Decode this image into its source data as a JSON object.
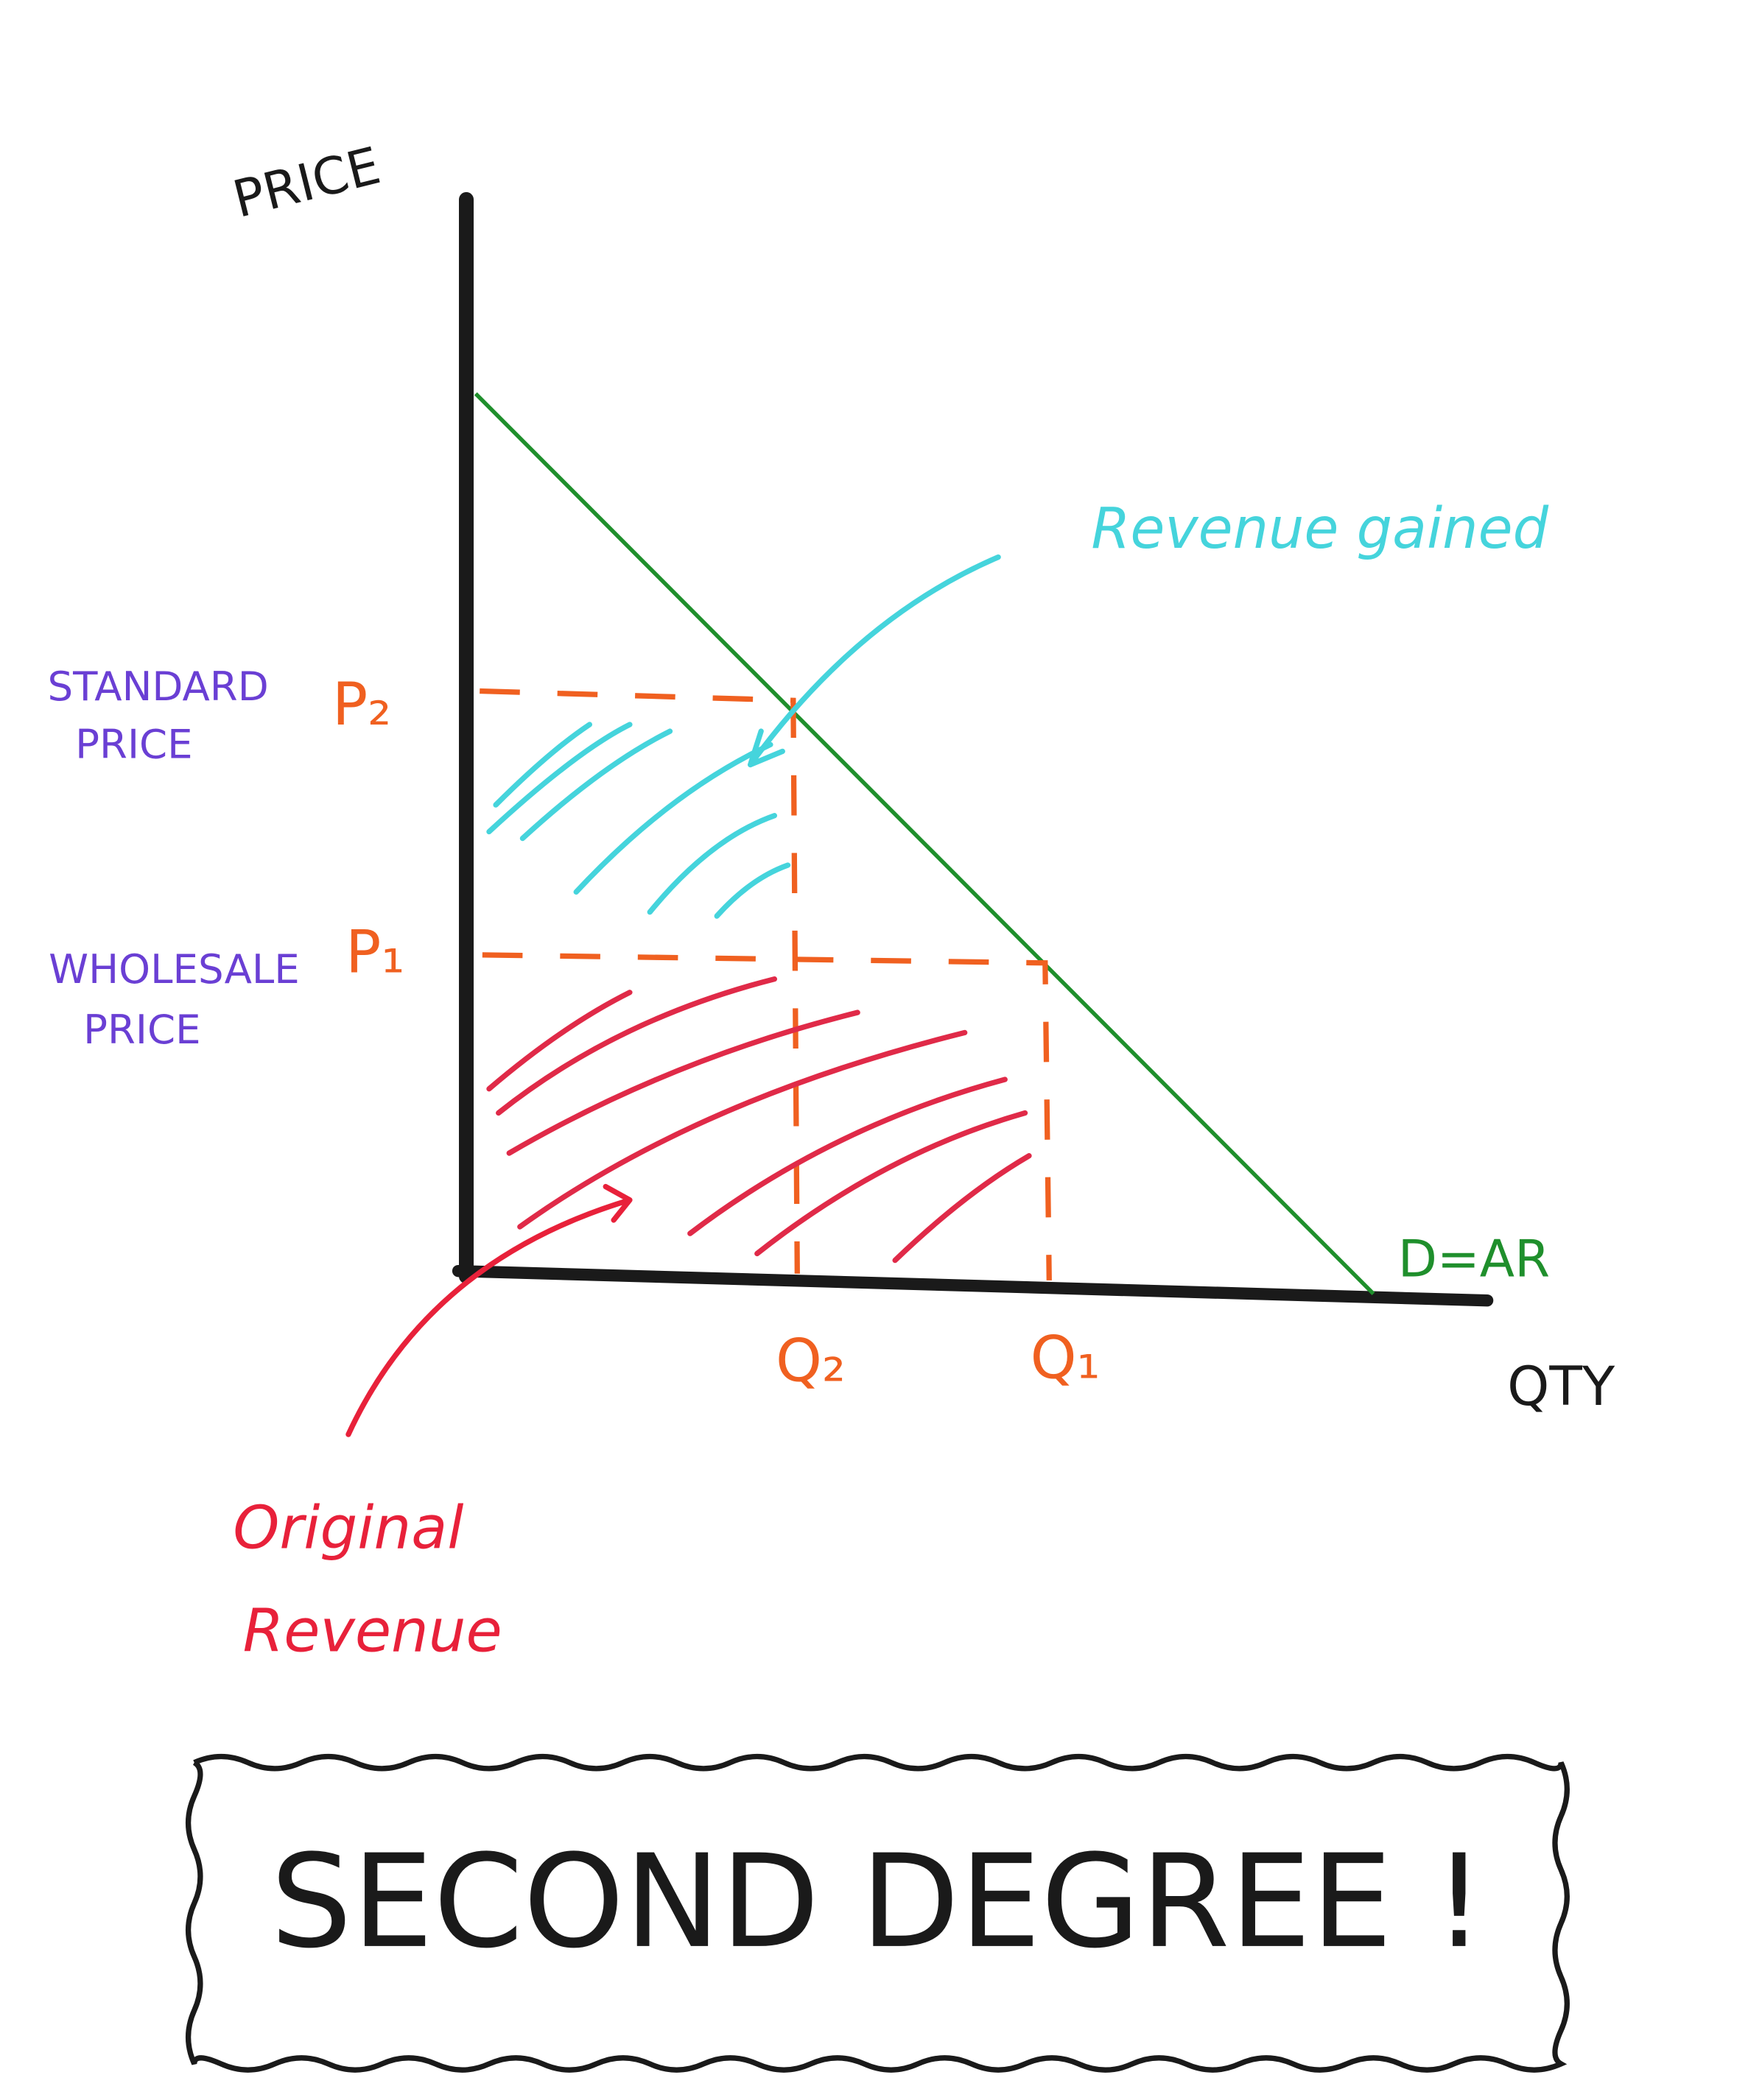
{
  "axes": {
    "y_label": "PRICE",
    "x_label": "QTY"
  },
  "price_levels": [
    {
      "name_lines": [
        "STANDARD",
        "PRICE"
      ],
      "symbol": "P₂"
    },
    {
      "name_lines": [
        "WHOLESALE",
        "PRICE"
      ],
      "symbol": "P₁"
    }
  ],
  "quantities": [
    "Q₂",
    "Q₁"
  ],
  "curve_label": "D=AR",
  "annotations": {
    "revenue_gained": "Revenue gained",
    "original_revenue_lines": [
      "Original",
      "Revenue"
    ]
  },
  "banner": "SECOND DEGREE !"
}
